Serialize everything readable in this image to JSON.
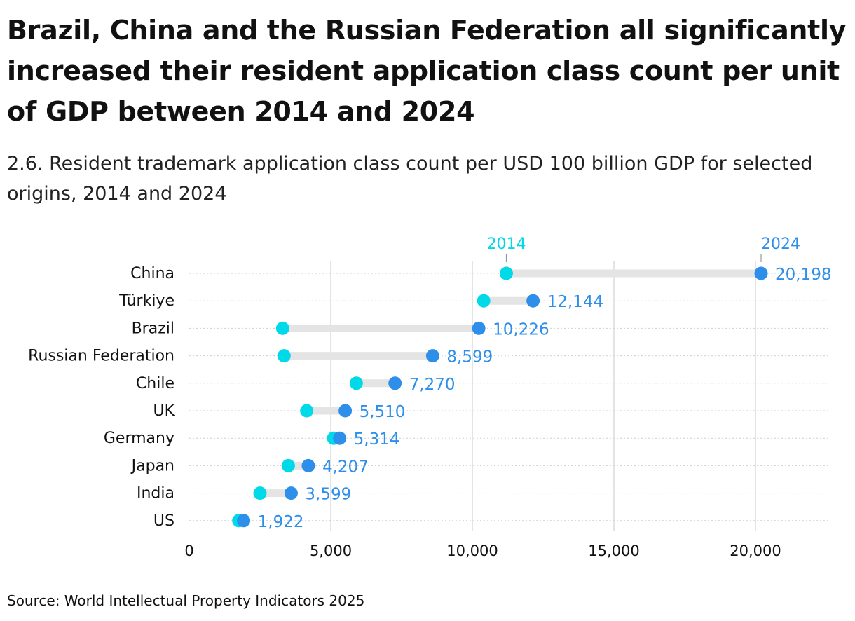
{
  "title": "Brazil, China and the Russian Federation all significantly increased their resident application class count per unit of GDP between 2014 and 2024",
  "subtitle": "2.6. Resident trademark application class count per USD 100 billion GDP for selected origins, 2014 and 2024",
  "source": "Source: World Intellectual Property Indicators 2025",
  "chart_data": {
    "type": "dumbbell",
    "title": "Brazil, China and the Russian Federation all significantly increased their resident application class count per unit of GDP between 2014 and 2024",
    "subtitle": "2.6. Resident trademark application class count per USD 100 billion GDP for selected origins, 2014 and 2024",
    "categories": [
      "China",
      "Türkiye",
      "Brazil",
      "Russian Federation",
      "Chile",
      "UK",
      "Germany",
      "Japan",
      "India",
      "US"
    ],
    "series": [
      {
        "name": "2014",
        "color": "#00d9e8",
        "values": [
          11200,
          10400,
          3300,
          3350,
          5900,
          4150,
          5100,
          3500,
          2500,
          1750
        ]
      },
      {
        "name": "2024",
        "color": "#2e8fea",
        "values": [
          20198,
          12144,
          10226,
          8599,
          7270,
          5510,
          5314,
          4207,
          3599,
          1922
        ]
      }
    ],
    "value_labels": [
      "20,198",
      "12,144",
      "10,226",
      "8,599",
      "7,270",
      "5,510",
      "5,314",
      "4,207",
      "3,599",
      "1,922"
    ],
    "xlim": [
      0,
      22500
    ],
    "x_ticks": [
      0,
      5000,
      10000,
      15000,
      20000
    ],
    "x_tick_labels": [
      "0",
      "5,000",
      "10,000",
      "15,000",
      "20,000"
    ],
    "legend_labels_on": "China",
    "grid": true
  }
}
